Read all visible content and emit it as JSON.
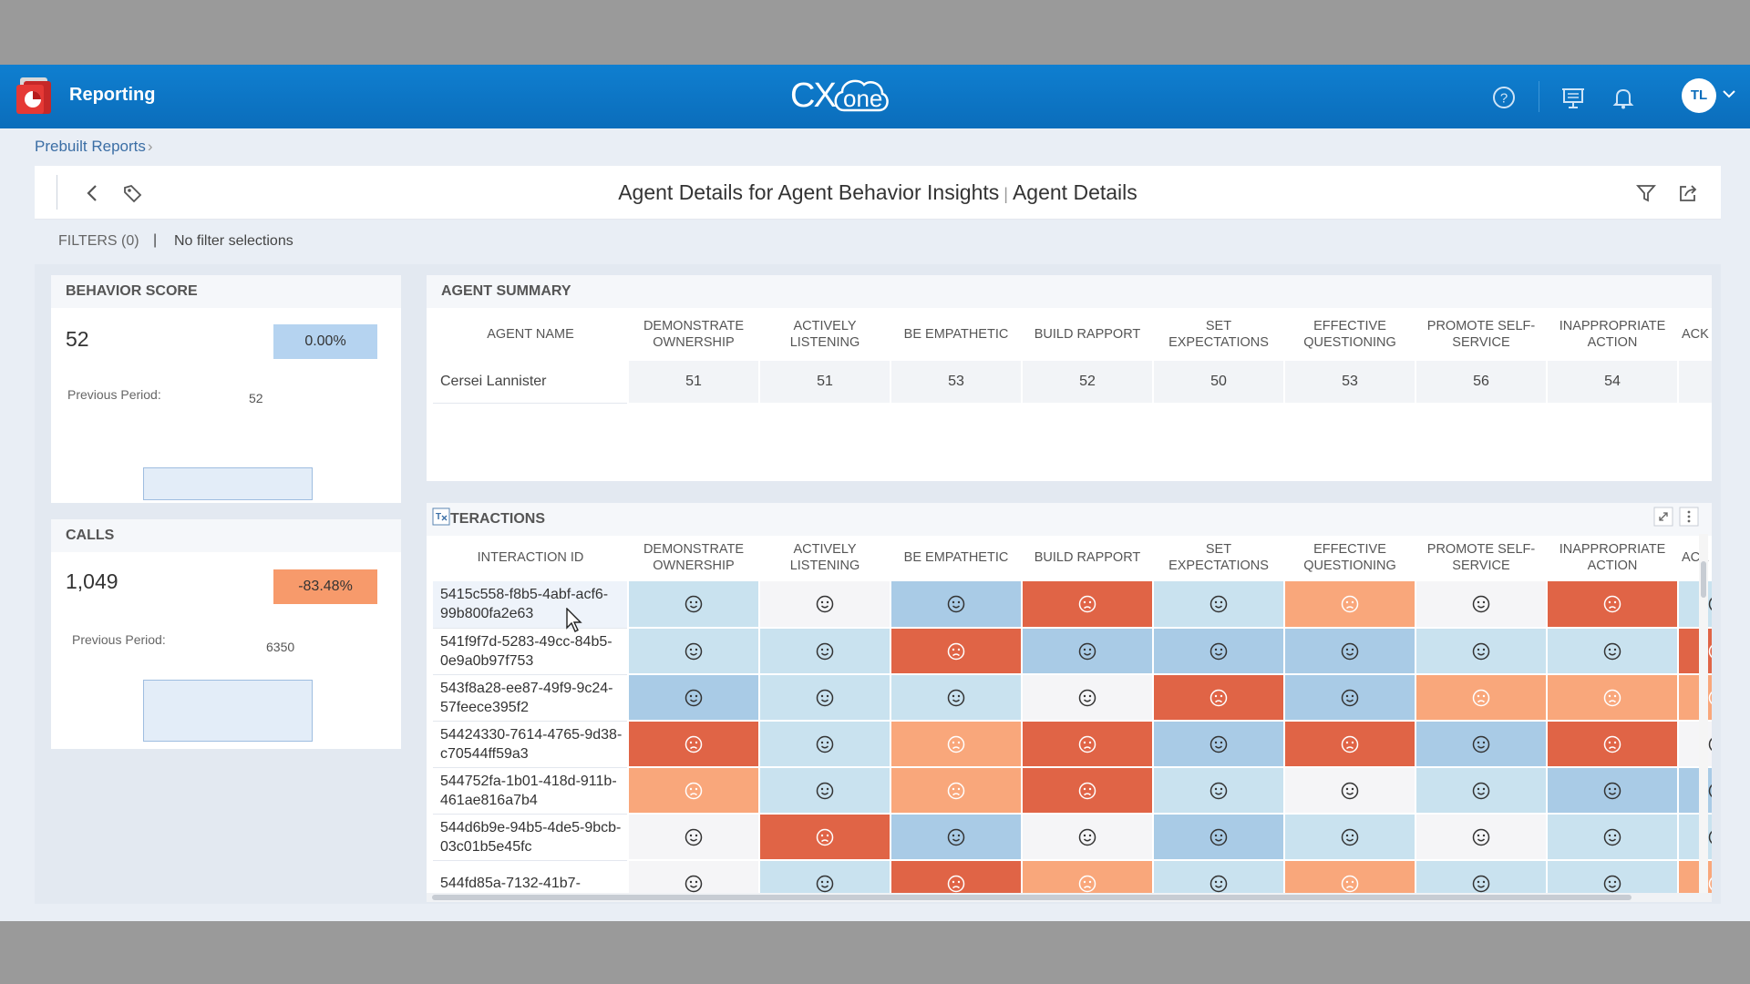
{
  "app": {
    "title": "Reporting",
    "brand": "CXone"
  },
  "user": {
    "initials": "TL"
  },
  "breadcrumb": {
    "label": "Prebuilt Reports",
    "separator": "›"
  },
  "header": {
    "title": "Agent Details for Agent Behavior Insights",
    "separator": "|",
    "subtitle": "Agent Details"
  },
  "filters": {
    "label": "FILTERS (0)",
    "separator": "|",
    "value": "No filter selections"
  },
  "behavior_score": {
    "title": "BEHAVIOR SCORE",
    "value": "52",
    "change": "0.00%",
    "prev_label": "Previous Period:",
    "prev_value": "52",
    "change_color": "#b5d3f0"
  },
  "calls": {
    "title": "CALLS",
    "value": "1,049",
    "change": "-83.48%",
    "prev_label": "Previous Period:",
    "prev_value": "6350",
    "change_color": "#f79a6b"
  },
  "agent_summary": {
    "title": "AGENT SUMMARY",
    "columns": [
      "AGENT NAME",
      "DEMONSTRATE OWNERSHIP",
      "ACTIVELY LISTENING",
      "BE EMPATHETIC",
      "BUILD RAPPORT",
      "SET EXPECTATIONS",
      "EFFECTIVE QUESTIONING",
      "PROMOTE SELF-SERVICE",
      "INAPPROPRIATE ACTION",
      "ACK"
    ],
    "rows": [
      {
        "name": "Cersei Lannister",
        "values": [
          "51",
          "51",
          "53",
          "52",
          "50",
          "53",
          "56",
          "54",
          ""
        ]
      }
    ]
  },
  "interactions": {
    "title": "TERACTIONS",
    "columns": [
      "INTERACTION ID",
      "DEMONSTRATE OWNERSHIP",
      "ACTIVELY LISTENING",
      "BE EMPATHETIC",
      "BUILD RAPPORT",
      "SET EXPECTATIONS",
      "EFFECTIVE QUESTIONING",
      "PROMOTE SELF-SERVICE",
      "INAPPROPRIATE ACTION",
      "ACK"
    ],
    "rows": [
      {
        "id": "5415c558-f8b5-4abf-acf6-99b800fa2e63",
        "cells": [
          "lb",
          "w",
          "mb",
          "r",
          "lb",
          "o",
          "w",
          "r",
          "lb"
        ]
      },
      {
        "id": "541f9f7d-5283-49cc-84b5-0e9a0b97f753",
        "cells": [
          "lb",
          "lb",
          "r",
          "mb",
          "mb",
          "mb",
          "lb",
          "lb",
          "r"
        ]
      },
      {
        "id": "543f8a28-ee87-49f9-9c24-57feece395f2",
        "cells": [
          "mb",
          "lb",
          "lb",
          "w",
          "r",
          "mb",
          "o",
          "o",
          "o"
        ]
      },
      {
        "id": "54424330-7614-4765-9d38-c70544ff59a3",
        "cells": [
          "r",
          "lb",
          "o",
          "r",
          "mb",
          "r",
          "mb",
          "r",
          "w"
        ]
      },
      {
        "id": "544752fa-1b01-418d-911b-461ae816a7b4",
        "cells": [
          "o",
          "lb",
          "o",
          "r",
          "lb",
          "w",
          "lb",
          "mb",
          "mb"
        ]
      },
      {
        "id": "544d6b9e-94b5-4de5-9bcb-03c01b5e45fc",
        "cells": [
          "w",
          "r",
          "mb",
          "w",
          "mb",
          "lb",
          "w",
          "lb",
          "lb"
        ]
      },
      {
        "id": "544fd85a-7132-41b7-",
        "cells": [
          "w",
          "lb",
          "r",
          "o",
          "lb",
          "o",
          "lb",
          "lb",
          "o"
        ]
      }
    ]
  },
  "icons": {
    "app_logo": "reporting-app-icon",
    "help": "question-circle-icon",
    "presentation": "presentation-board-icon",
    "bell": "bell-icon",
    "back": "chevron-left-icon",
    "tag": "tag-icon",
    "filter": "funnel-icon",
    "export": "share-export-icon",
    "expand": "expand-icon",
    "more": "kebab-icon",
    "clear_filter": "clear-filter-icon"
  },
  "colors": {
    "topbar": "#0f7fd0",
    "light_blue": "#c9e2ef",
    "mid_blue": "#a9cbe6",
    "white": "#f5f5f7",
    "orange": "#f9a77b",
    "red": "#e06446"
  }
}
